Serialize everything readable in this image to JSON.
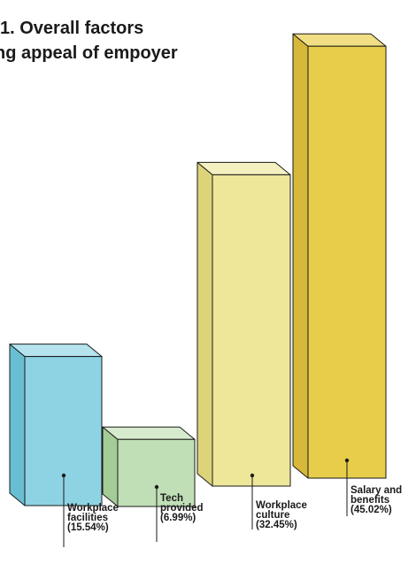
{
  "chart_data": {
    "type": "bar",
    "title_lines": [
      "1. Overall factors",
      "ng appeal of empoyer"
    ],
    "categories": [
      [
        "Workplace",
        "facilities",
        "(15.54%)"
      ],
      [
        "Tech",
        "provided",
        "(6.99%)"
      ],
      [
        "Workplace",
        "culture",
        "(32.45%)"
      ],
      [
        "Salary and",
        "benefits",
        "(45.02%)"
      ]
    ],
    "values": [
      15.54,
      6.99,
      32.45,
      45.02
    ],
    "unit": "%",
    "colors": {
      "front": [
        "#8dd3e3",
        "#c0dfb6",
        "#eee79a",
        "#e8cd4a"
      ],
      "top": [
        "#b5e4ee",
        "#d6ebcd",
        "#f5f0c0",
        "#f2df85"
      ],
      "side": [
        "#68bfd2",
        "#a3cc96",
        "#ddd47a",
        "#d7b83a"
      ],
      "outline": "#1a1a1a",
      "text": "#1a1a1a"
    }
  }
}
